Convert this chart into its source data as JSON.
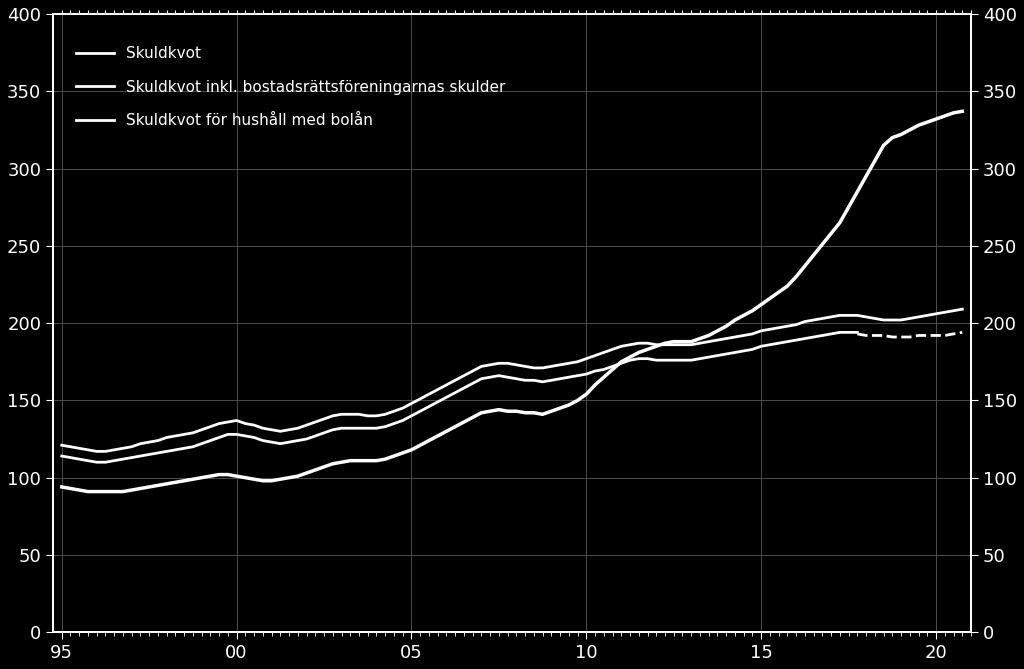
{
  "background_color": "#000000",
  "text_color": "#ffffff",
  "grid_color": "#555555",
  "line_color": "#ffffff",
  "ylim": [
    0,
    400
  ],
  "yticks": [
    0,
    50,
    100,
    150,
    200,
    250,
    300,
    350,
    400
  ],
  "xtick_labels": [
    "95",
    "00",
    "05",
    "10",
    "15",
    "20"
  ],
  "xtick_positions": [
    1995,
    2000,
    2005,
    2010,
    2015,
    2020
  ],
  "legend_entries": [
    "Skuldkvot",
    "Skuldkvot inkl. bostadsrättsföreningarnas skulder",
    "Skuldkvot för hushåll med bolån"
  ],
  "series1_x": [
    1995.0,
    1995.25,
    1995.5,
    1995.75,
    1996.0,
    1996.25,
    1996.5,
    1996.75,
    1997.0,
    1997.25,
    1997.5,
    1997.75,
    1998.0,
    1998.25,
    1998.5,
    1998.75,
    1999.0,
    1999.25,
    1999.5,
    1999.75,
    2000.0,
    2000.25,
    2000.5,
    2000.75,
    2001.0,
    2001.25,
    2001.5,
    2001.75,
    2002.0,
    2002.25,
    2002.5,
    2002.75,
    2003.0,
    2003.25,
    2003.5,
    2003.75,
    2004.0,
    2004.25,
    2004.5,
    2004.75,
    2005.0,
    2005.25,
    2005.5,
    2005.75,
    2006.0,
    2006.25,
    2006.5,
    2006.75,
    2007.0,
    2007.25,
    2007.5,
    2007.75,
    2008.0,
    2008.25,
    2008.5,
    2008.75,
    2009.0,
    2009.25,
    2009.5,
    2009.75,
    2010.0,
    2010.25,
    2010.5,
    2010.75,
    2011.0,
    2011.25,
    2011.5,
    2011.75,
    2012.0,
    2012.25,
    2012.5,
    2012.75,
    2013.0,
    2013.25,
    2013.5,
    2013.75,
    2014.0,
    2014.25,
    2014.5,
    2014.75,
    2015.0,
    2015.25,
    2015.5,
    2015.75,
    2016.0,
    2016.25,
    2016.5,
    2016.75,
    2017.0,
    2017.25,
    2017.5,
    2017.75,
    2018.0,
    2018.25,
    2018.5,
    2018.75,
    2019.0,
    2019.25,
    2019.5,
    2019.75,
    2020.0,
    2020.25,
    2020.5,
    2020.75
  ],
  "series1_y": [
    121,
    120,
    119,
    118,
    117,
    117,
    118,
    119,
    120,
    122,
    123,
    124,
    126,
    127,
    128,
    129,
    131,
    133,
    135,
    136,
    137,
    135,
    134,
    132,
    131,
    130,
    131,
    132,
    134,
    136,
    138,
    140,
    141,
    141,
    141,
    140,
    140,
    141,
    143,
    145,
    148,
    151,
    154,
    157,
    160,
    163,
    166,
    169,
    172,
    173,
    174,
    174,
    173,
    172,
    171,
    171,
    172,
    173,
    174,
    175,
    177,
    179,
    181,
    183,
    185,
    186,
    187,
    187,
    186,
    186,
    186,
    186,
    186,
    187,
    188,
    189,
    190,
    191,
    192,
    193,
    195,
    196,
    197,
    198,
    199,
    201,
    202,
    203,
    204,
    205,
    205,
    205,
    204,
    203,
    202,
    202,
    202,
    203,
    204,
    205,
    206,
    207,
    208,
    209
  ],
  "series2_x": [
    1995.0,
    1995.25,
    1995.5,
    1995.75,
    1996.0,
    1996.25,
    1996.5,
    1996.75,
    1997.0,
    1997.25,
    1997.5,
    1997.75,
    1998.0,
    1998.25,
    1998.5,
    1998.75,
    1999.0,
    1999.25,
    1999.5,
    1999.75,
    2000.0,
    2000.25,
    2000.5,
    2000.75,
    2001.0,
    2001.25,
    2001.5,
    2001.75,
    2002.0,
    2002.25,
    2002.5,
    2002.75,
    2003.0,
    2003.25,
    2003.5,
    2003.75,
    2004.0,
    2004.25,
    2004.5,
    2004.75,
    2005.0,
    2005.25,
    2005.5,
    2005.75,
    2006.0,
    2006.25,
    2006.5,
    2006.75,
    2007.0,
    2007.25,
    2007.5,
    2007.75,
    2008.0,
    2008.25,
    2008.5,
    2008.75,
    2009.0,
    2009.25,
    2009.5,
    2009.75,
    2010.0,
    2010.25,
    2010.5,
    2010.75,
    2011.0,
    2011.25,
    2011.5,
    2011.75,
    2012.0,
    2012.25,
    2012.5,
    2012.75,
    2013.0,
    2013.25,
    2013.5,
    2013.75,
    2014.0,
    2014.25,
    2014.5,
    2014.75,
    2015.0,
    2015.25,
    2015.5,
    2015.75,
    2016.0,
    2016.25,
    2016.5,
    2016.75,
    2017.0,
    2017.25,
    2017.5,
    2017.75
  ],
  "series2_y": [
    114,
    113,
    112,
    111,
    110,
    110,
    111,
    112,
    113,
    114,
    115,
    116,
    117,
    118,
    119,
    120,
    122,
    124,
    126,
    128,
    128,
    127,
    126,
    124,
    123,
    122,
    123,
    124,
    125,
    127,
    129,
    131,
    132,
    132,
    132,
    132,
    132,
    133,
    135,
    137,
    140,
    143,
    146,
    149,
    152,
    155,
    158,
    161,
    164,
    165,
    166,
    165,
    164,
    163,
    163,
    162,
    163,
    164,
    165,
    166,
    167,
    169,
    170,
    172,
    174,
    176,
    177,
    177,
    176,
    176,
    176,
    176,
    176,
    177,
    178,
    179,
    180,
    181,
    182,
    183,
    185,
    186,
    187,
    188,
    189,
    190,
    191,
    192,
    193,
    194,
    194,
    194
  ],
  "series2_dashed_x": [
    2017.75,
    2018.0,
    2018.25,
    2018.5,
    2018.75,
    2019.0,
    2019.25,
    2019.5,
    2019.75,
    2020.0,
    2020.25,
    2020.5,
    2020.75
  ],
  "series2_dashed_y": [
    193,
    192,
    192,
    192,
    191,
    191,
    191,
    192,
    192,
    192,
    192,
    193,
    194
  ],
  "series3_x": [
    1995.0,
    1995.25,
    1995.5,
    1995.75,
    1996.0,
    1996.25,
    1996.5,
    1996.75,
    1997.0,
    1997.25,
    1997.5,
    1997.75,
    1998.0,
    1998.25,
    1998.5,
    1998.75,
    1999.0,
    1999.25,
    1999.5,
    1999.75,
    2000.0,
    2000.25,
    2000.5,
    2000.75,
    2001.0,
    2001.25,
    2001.5,
    2001.75,
    2002.0,
    2002.25,
    2002.5,
    2002.75,
    2003.0,
    2003.25,
    2003.5,
    2003.75,
    2004.0,
    2004.25,
    2004.5,
    2004.75,
    2005.0,
    2005.25,
    2005.5,
    2005.75,
    2006.0,
    2006.25,
    2006.5,
    2006.75,
    2007.0,
    2007.25,
    2007.5,
    2007.75,
    2008.0,
    2008.25,
    2008.5,
    2008.75,
    2009.0,
    2009.25,
    2009.5,
    2009.75,
    2010.0,
    2010.25,
    2010.5,
    2010.75,
    2011.0,
    2011.25,
    2011.5,
    2011.75,
    2012.0,
    2012.25,
    2012.5,
    2012.75,
    2013.0,
    2013.25,
    2013.5,
    2013.75,
    2014.0,
    2014.25,
    2014.5,
    2014.75,
    2015.0,
    2015.25,
    2015.5,
    2015.75,
    2016.0,
    2016.25,
    2016.5,
    2016.75,
    2017.0,
    2017.25,
    2017.5,
    2017.75,
    2018.0,
    2018.25,
    2018.5,
    2018.75,
    2019.0,
    2019.25,
    2019.5,
    2019.75,
    2020.0,
    2020.25,
    2020.5,
    2020.75
  ],
  "series3_y": [
    94,
    93,
    92,
    91,
    91,
    91,
    91,
    91,
    92,
    93,
    94,
    95,
    96,
    97,
    98,
    99,
    100,
    101,
    102,
    102,
    101,
    100,
    99,
    98,
    98,
    99,
    100,
    101,
    103,
    105,
    107,
    109,
    110,
    111,
    111,
    111,
    111,
    112,
    114,
    116,
    118,
    121,
    124,
    127,
    130,
    133,
    136,
    139,
    142,
    143,
    144,
    143,
    143,
    142,
    142,
    141,
    143,
    145,
    147,
    150,
    154,
    160,
    165,
    170,
    175,
    178,
    181,
    183,
    185,
    187,
    188,
    188,
    188,
    190,
    192,
    195,
    198,
    202,
    205,
    208,
    212,
    216,
    220,
    224,
    230,
    237,
    244,
    251,
    258,
    265,
    275,
    285,
    295,
    305,
    315,
    320,
    322,
    325,
    328,
    330,
    332,
    334,
    336,
    337
  ]
}
